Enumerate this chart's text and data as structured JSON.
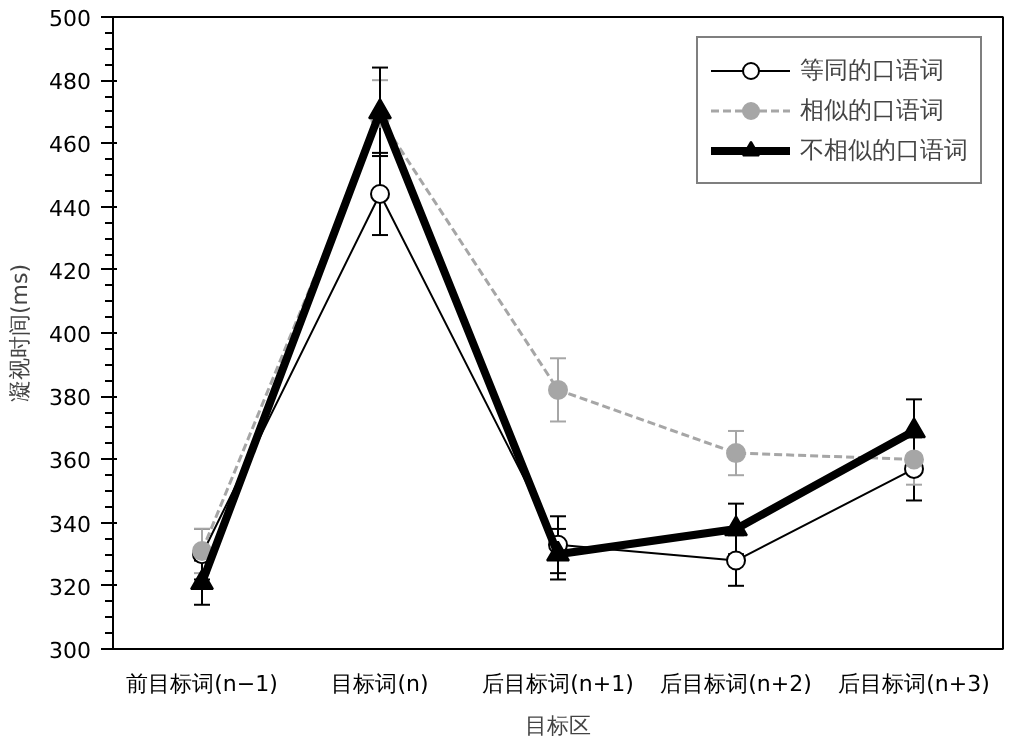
{
  "chart_data": {
    "type": "line",
    "xlabel": "目标区",
    "ylabel": "凝视时间(ms)",
    "categories": [
      "前目标词(n−1)",
      "目标词(n)",
      "后目标词(n+1)",
      "后目标词(n+2)",
      "后目标词(n+3)"
    ],
    "ylim": [
      300,
      500
    ],
    "yticks": [
      300,
      320,
      340,
      360,
      380,
      400,
      420,
      440,
      460,
      480,
      500
    ],
    "grid": false,
    "legend": "top right",
    "series": [
      {
        "name": "等同的口语词",
        "color": "#000000",
        "marker": "circle",
        "line_style": "solid",
        "values": [
          330,
          444,
          333,
          328,
          357
        ],
        "errors": [
          8,
          13,
          9,
          8,
          10
        ]
      },
      {
        "name": "相似的口语词",
        "color": "#a6a6a6",
        "marker": "circle",
        "line_style": "dashed",
        "values": [
          331,
          468,
          382,
          362,
          360
        ],
        "errors": [
          7,
          12,
          10,
          7,
          8
        ]
      },
      {
        "name": "不相似的口语词",
        "color": "#000000",
        "marker": "triangle",
        "line_style": "solid",
        "values": [
          321,
          470,
          330,
          338,
          369
        ],
        "errors": [
          7,
          14,
          8,
          8,
          10
        ]
      }
    ]
  }
}
